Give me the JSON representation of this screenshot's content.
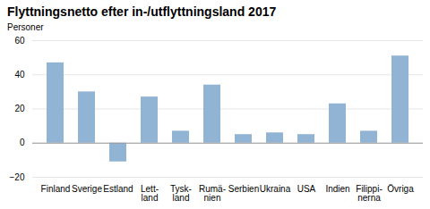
{
  "chart_data": {
    "type": "bar",
    "title": "Flyttningsnetto efter in-/utflyttningsland 2017",
    "ylabel": "Personer",
    "categories": [
      "Finland",
      "Sverige",
      "Estland",
      "Lett-\nland",
      "Tysk-\nland",
      "Rumä-\nnien",
      "Serbien",
      "Ukraina",
      "USA",
      "Indien",
      "Filippi-\nnerna",
      "Övriga"
    ],
    "values": [
      47,
      30,
      -11,
      27,
      7,
      34,
      5,
      6,
      5,
      23,
      7,
      51
    ],
    "color": "#92b4d4",
    "ylim": [
      -20,
      60
    ],
    "yticks": [
      -20,
      0,
      20,
      40,
      60
    ],
    "grid": true
  }
}
